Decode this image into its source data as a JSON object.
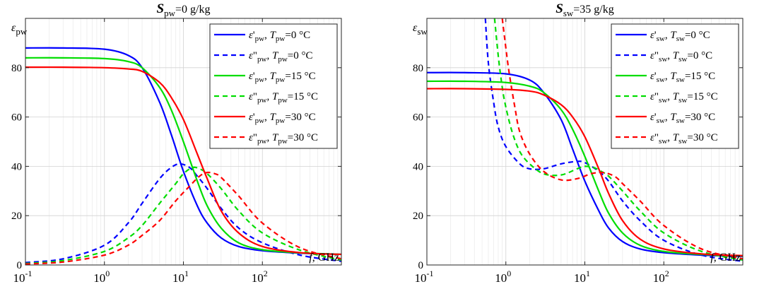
{
  "chart_data": [
    {
      "type": "line",
      "title": {
        "main": "S",
        "sub": "pw",
        "rest": "=0 g/kg"
      },
      "ylabel": {
        "main": "ε",
        "sub": "pw"
      },
      "xlabel": {
        "main": "f",
        "rest": ", GHz"
      },
      "xscale": "log",
      "xlim": [
        0.1,
        1000
      ],
      "ylim": [
        0,
        100
      ],
      "x_ticks": [
        {
          "base": "10",
          "exp": "-1"
        },
        {
          "base": "10",
          "exp": "0"
        },
        {
          "base": "10",
          "exp": "1"
        },
        {
          "base": "10",
          "exp": "2"
        }
      ],
      "y_ticks": [
        "0",
        "20",
        "40",
        "60",
        "80"
      ],
      "grid": true,
      "legend_position": "top-right",
      "series": [
        {
          "name": {
            "eps": "ε",
            "prime": "'",
            "sub": "pw",
            "T": "T",
            "tsub": "pw",
            "rest": "=0 °C"
          },
          "color": "#0000ff",
          "dash": "solid",
          "x": [
            0.1,
            0.3,
            1,
            2,
            3,
            5,
            7,
            10,
            15,
            20,
            30,
            50,
            100,
            300,
            1000
          ],
          "y": [
            88,
            88,
            87.5,
            85,
            80,
            66,
            53,
            38,
            24,
            17,
            11,
            7.5,
            5.8,
            4.8,
            4.3
          ]
        },
        {
          "name": {
            "eps": "ε",
            "prime": "\"",
            "sub": "pw",
            "T": "T",
            "tsub": "pw",
            "rest": "=0 °C"
          },
          "color": "#0000ff",
          "dash": "dashed",
          "x": [
            0.1,
            0.3,
            1,
            2,
            3,
            5,
            7,
            9,
            12,
            15,
            20,
            30,
            50,
            100,
            300,
            1000
          ],
          "y": [
            1,
            2.5,
            8,
            17,
            25,
            35,
            39.5,
            41,
            39.5,
            36,
            31,
            23,
            15,
            9,
            4,
            1.5
          ]
        },
        {
          "name": {
            "eps": "ε",
            "prime": "'",
            "sub": "pw",
            "T": "T",
            "tsub": "pw",
            "rest": "=15 °C"
          },
          "color": "#00dd00",
          "dash": "solid",
          "x": [
            0.1,
            0.3,
            1,
            2,
            3,
            5,
            7,
            10,
            15,
            20,
            30,
            50,
            100,
            300,
            1000
          ],
          "y": [
            84,
            84,
            83.7,
            82.5,
            80,
            72,
            63,
            50,
            34,
            24,
            15,
            9,
            6.2,
            4.9,
            4.3
          ]
        },
        {
          "name": {
            "eps": "ε",
            "prime": "\"",
            "sub": "pw",
            "T": "T",
            "tsub": "pw",
            "rest": "=15 °C"
          },
          "color": "#00dd00",
          "dash": "dashed",
          "x": [
            0.1,
            0.3,
            1,
            2,
            3,
            5,
            8,
            10,
            13,
            16,
            20,
            30,
            50,
            100,
            300,
            1000
          ],
          "y": [
            0.6,
            1.8,
            5.5,
            11,
            16,
            25,
            33,
            37,
            39.5,
            39,
            37,
            31,
            22,
            13,
            6,
            2
          ]
        },
        {
          "name": {
            "eps": "ε",
            "prime": "'",
            "sub": "pw",
            "T": "T",
            "tsub": "pw",
            "rest": "=30 °C"
          },
          "color": "#ff0000",
          "dash": "solid",
          "x": [
            0.1,
            0.3,
            1,
            2,
            3,
            5,
            7,
            10,
            15,
            20,
            30,
            50,
            100,
            300,
            1000
          ],
          "y": [
            80.2,
            80.2,
            80,
            79.5,
            78.5,
            74,
            68,
            59,
            45,
            35,
            22,
            13,
            7.5,
            5,
            4.3
          ]
        },
        {
          "name": {
            "eps": "ε",
            "prime": "\"",
            "sub": "pw",
            "T": "T",
            "tsub": "pw",
            "rest": "=30 °C"
          },
          "color": "#ff0000",
          "dash": "dashed",
          "x": [
            0.1,
            0.3,
            1,
            2,
            3,
            5,
            8,
            12,
            16,
            20,
            25,
            30,
            50,
            100,
            300,
            1000
          ],
          "y": [
            0.4,
            1.2,
            4,
            8,
            12,
            18,
            26,
            32,
            36,
            37.5,
            37,
            35.5,
            28,
            17,
            7,
            2.5
          ]
        }
      ]
    },
    {
      "type": "line",
      "title": {
        "main": "S",
        "sub": "sw",
        "rest": "=35 g/kg"
      },
      "ylabel": {
        "main": "ε",
        "sub": "sw"
      },
      "xlabel": {
        "main": "f",
        "rest": ", GHz"
      },
      "xscale": "log",
      "xlim": [
        0.1,
        1000
      ],
      "ylim": [
        0,
        100
      ],
      "x_ticks": [
        {
          "base": "10",
          "exp": "-1"
        },
        {
          "base": "10",
          "exp": "0"
        },
        {
          "base": "10",
          "exp": "1"
        },
        {
          "base": "10",
          "exp": "2"
        }
      ],
      "y_ticks": [
        "0",
        "20",
        "40",
        "60",
        "80"
      ],
      "grid": true,
      "legend_position": "top-right",
      "series": [
        {
          "name": {
            "eps": "ε",
            "prime": "'",
            "sub": "sw",
            "T": "T",
            "tsub": "sw",
            "rest": "=0 °C"
          },
          "color": "#0000ff",
          "dash": "solid",
          "x": [
            0.1,
            0.3,
            1,
            2,
            3,
            5,
            7,
            10,
            15,
            20,
            30,
            50,
            100,
            300,
            1000
          ],
          "y": [
            78,
            78,
            77.5,
            75,
            70,
            59,
            47,
            34,
            22,
            15,
            9.5,
            6.5,
            5,
            4,
            3.5
          ]
        },
        {
          "name": {
            "eps": "ε",
            "prime": "\"",
            "sub": "sw",
            "T": "T",
            "tsub": "sw",
            "rest": "=0 °C"
          },
          "color": "#0000ff",
          "dash": "dashed",
          "x": [
            0.55,
            0.6,
            0.7,
            0.8,
            1,
            1.5,
            2,
            3,
            5,
            8,
            10,
            15,
            20,
            30,
            50,
            100,
            300,
            1000
          ],
          "y": [
            100,
            82,
            66,
            56,
            48,
            41,
            39,
            39,
            41,
            42,
            41.5,
            38,
            34,
            26,
            18,
            10,
            4,
            1.5
          ]
        },
        {
          "name": {
            "eps": "ε",
            "prime": "'",
            "sub": "sw",
            "T": "T",
            "tsub": "sw",
            "rest": "=15 °C"
          },
          "color": "#00dd00",
          "dash": "solid",
          "x": [
            0.1,
            0.3,
            1,
            2,
            3,
            5,
            7,
            10,
            15,
            20,
            30,
            50,
            100,
            300,
            1000
          ],
          "y": [
            74.5,
            74.5,
            74,
            72.5,
            70,
            63,
            55,
            44,
            30,
            21,
            13,
            8,
            5.5,
            4.3,
            3.7
          ]
        },
        {
          "name": {
            "eps": "ε",
            "prime": "\"",
            "sub": "sw",
            "T": "T",
            "tsub": "sw",
            "rest": "=15 °C"
          },
          "color": "#00dd00",
          "dash": "dashed",
          "x": [
            0.72,
            0.8,
            0.9,
            1,
            1.2,
            1.5,
            2,
            3,
            5,
            8,
            10,
            13,
            16,
            20,
            30,
            50,
            100,
            300,
            1000
          ],
          "y": [
            100,
            85,
            72,
            64,
            54,
            46,
            41,
            37,
            36.5,
            39,
            40,
            39.5,
            38,
            36,
            30,
            22,
            13,
            5.5,
            2
          ]
        },
        {
          "name": {
            "eps": "ε",
            "prime": "'",
            "sub": "sw",
            "T": "T",
            "tsub": "sw",
            "rest": "=30 °C"
          },
          "color": "#ff0000",
          "dash": "solid",
          "x": [
            0.1,
            0.3,
            1,
            2,
            3,
            5,
            7,
            10,
            15,
            20,
            30,
            50,
            100,
            300,
            1000
          ],
          "y": [
            71.5,
            71.5,
            71.2,
            70.5,
            69,
            65,
            60,
            52,
            39,
            29,
            18,
            10.5,
            6.5,
            4.5,
            3.8
          ]
        },
        {
          "name": {
            "eps": "ε",
            "prime": "\"",
            "sub": "sw",
            "T": "T",
            "tsub": "sw",
            "rest": "=30 °C"
          },
          "color": "#ff0000",
          "dash": "dashed",
          "x": [
            0.9,
            1,
            1.1,
            1.3,
            1.5,
            2,
            3,
            5,
            8,
            12,
            16,
            20,
            25,
            30,
            50,
            100,
            300,
            1000
          ],
          "y": [
            100,
            88,
            78,
            64,
            54,
            45,
            38,
            34.5,
            35,
            37,
            37.5,
            37,
            35.5,
            33,
            26,
            16,
            6.5,
            2.5
          ]
        }
      ]
    }
  ]
}
